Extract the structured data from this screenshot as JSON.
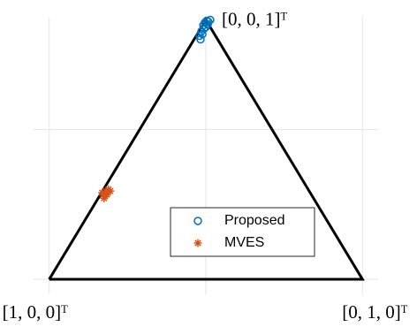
{
  "chart_data": {
    "type": "scatter",
    "xlim": [
      -0.05,
      1.05
    ],
    "ylim": [
      -0.05,
      0.9
    ],
    "xticks": [
      0,
      0.5,
      1
    ],
    "yticks": [
      0,
      0.5
    ],
    "grid": true,
    "simplex": {
      "x": [
        0,
        1,
        0.5,
        0
      ],
      "y": [
        0,
        0,
        0.866,
        0
      ],
      "color": "#000000",
      "vertex_labels": [
        "[1, 0, 0]ᵀ",
        "[0, 1, 0]ᵀ",
        "[0, 0, 1]ᵀ"
      ]
    },
    "series": [
      {
        "name": "Proposed",
        "color": "#0072bd",
        "marker": "circle",
        "x": [
          0.492,
          0.497,
          0.503,
          0.508,
          0.486,
          0.48,
          0.494,
          0.5,
          0.489,
          0.506,
          0.483,
          0.514
        ],
        "values": [
          0.848,
          0.857,
          0.863,
          0.86,
          0.828,
          0.813,
          0.837,
          0.842,
          0.819,
          0.851,
          0.801,
          0.866
        ]
      },
      {
        "name": "MVES",
        "color": "#d95319",
        "marker": "asterisk",
        "x": [
          0.172,
          0.181,
          0.189,
          0.178,
          0.186,
          0.169,
          0.195,
          0.175,
          0.184
        ],
        "values": [
          0.283,
          0.295,
          0.3,
          0.277,
          0.289,
          0.289,
          0.295,
          0.271,
          0.283
        ]
      }
    ]
  }
}
